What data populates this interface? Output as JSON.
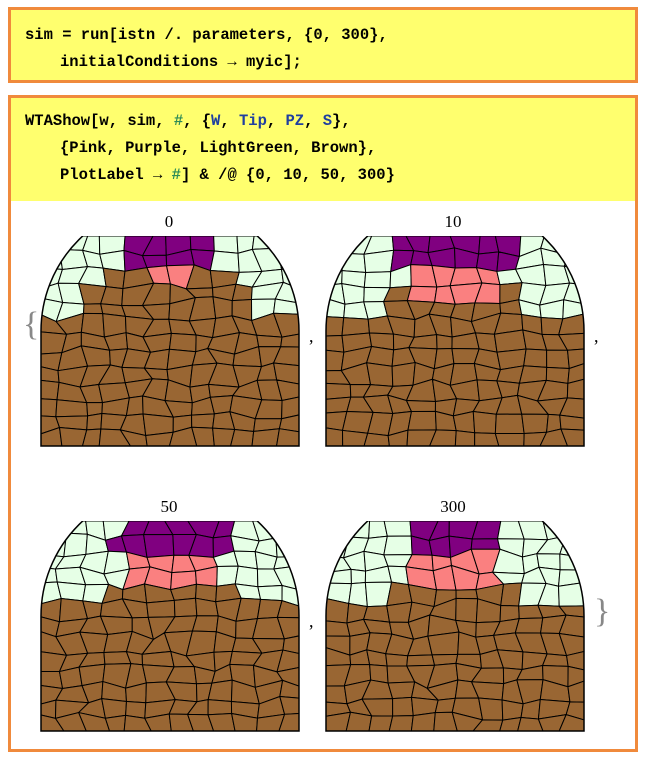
{
  "cell1": {
    "line1": "sim = run[istn /. parameters, {0, 300},",
    "line2": "initialConditions → myic];"
  },
  "cell2": {
    "line1_a": "WTAShow[w, sim, ",
    "line1_hash": "#",
    "line1_b": ", {",
    "line1_W": "W",
    "line1_c": ", ",
    "line1_Tip": "Tip",
    "line1_d": ", ",
    "line1_PZ": "PZ",
    "line1_e": ", ",
    "line1_S": "S",
    "line1_f": "},",
    "line2": "{Pink, Purple, LightGreen, Brown},",
    "line3_a": "PlotLabel → ",
    "line3_hash": "#",
    "line3_b": "] & /@ {0, 10, 50, 300}"
  },
  "output": {
    "open_brace": "{",
    "close_brace": "}",
    "comma": ",",
    "plots": [
      {
        "label": "0",
        "boundary_front": 0.18,
        "pz_lift": 0.0
      },
      {
        "label": "10",
        "boundary_front": 0.45,
        "pz_lift": 0.35
      },
      {
        "label": "50",
        "boundary_front": 0.55,
        "pz_lift": 0.55
      },
      {
        "label": "300",
        "boundary_front": 0.58,
        "pz_lift": 0.6
      }
    ]
  },
  "colors": {
    "pink": "#fa8080",
    "purple": "#800080",
    "lightgreen": "#e6ffe6",
    "brown": "#996633",
    "cell_border": "#f08a3c",
    "input_bg": "#ffff6e"
  }
}
